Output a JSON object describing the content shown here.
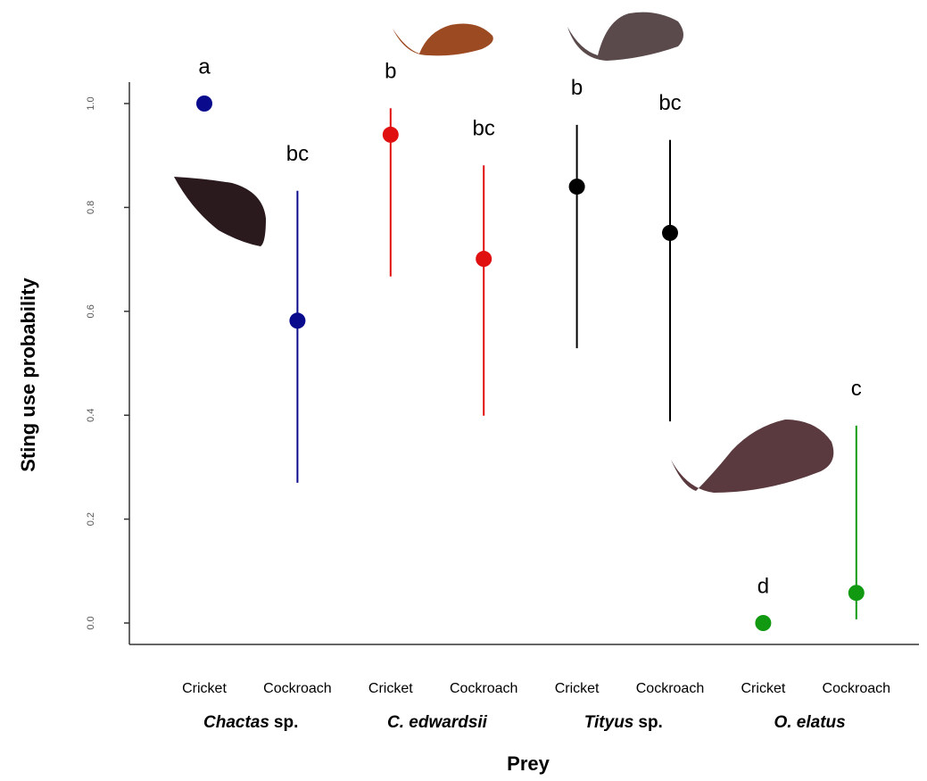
{
  "chart_data": {
    "type": "pointrange",
    "y_label": "Sting use probability",
    "x_label": "Prey",
    "ylim": [
      0,
      1
    ],
    "yticks": [
      {
        "value": 0,
        "label": "0.0"
      },
      0.2,
      0.4,
      0.6,
      0.8,
      {
        "value": 1,
        "label": "1.0"
      }
    ],
    "series": [
      {
        "name_parts": [
          {
            "text": "Chactas",
            "italic": true
          },
          {
            "text": "sp.",
            "italic": false
          }
        ],
        "color": "#0a0a8c",
        "categories": [
          "Cricket",
          "Cockroach"
        ],
        "values": [
          1.0,
          0.582
        ],
        "lower": [
          null,
          0.27
        ],
        "upper": [
          null,
          0.832
        ],
        "letters": [
          "a",
          "bc"
        ]
      },
      {
        "name_parts": [
          {
            "text": "C. edwardsii",
            "italic": true
          }
        ],
        "color": "#e01010",
        "categories": [
          "Cricket",
          "Cockroach"
        ],
        "values": [
          0.94,
          0.701
        ],
        "lower": [
          0.667,
          0.399
        ],
        "upper": [
          0.991,
          0.881
        ],
        "letters": [
          "b",
          "bc"
        ]
      },
      {
        "name_parts": [
          {
            "text": "Tityus",
            "italic": true
          },
          {
            "text": "sp.",
            "italic": false
          }
        ],
        "color": "#000000",
        "categories": [
          "Cricket",
          "Cockroach"
        ],
        "values": [
          0.84,
          0.751
        ],
        "lower": [
          0.529,
          0.388
        ],
        "upper": [
          0.959,
          0.93
        ],
        "letters": [
          "b",
          "bc"
        ]
      },
      {
        "name_parts": [
          {
            "text": "O. elatus",
            "italic": true
          }
        ],
        "color": "#119a11",
        "categories": [
          "Cricket",
          "Cockroach"
        ],
        "values": [
          0.0,
          0.058
        ],
        "lower": [
          null,
          0.007
        ],
        "upper": [
          null,
          0.38
        ],
        "letters": [
          "d",
          "c"
        ]
      }
    ]
  }
}
